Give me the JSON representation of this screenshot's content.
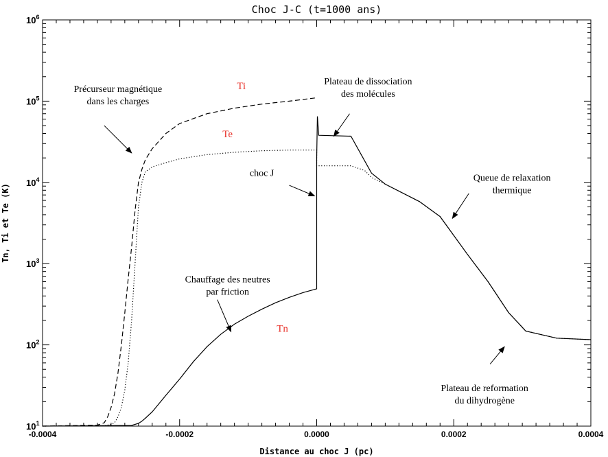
{
  "chart_data": {
    "type": "line",
    "title": "Choc J-C (t=1000 ans)",
    "xlabel": "Distance au choc J (pc)",
    "ylabel": "Tn, Ti et Te (K)",
    "xlim": [
      -0.0004,
      0.0004
    ],
    "ylim": [
      10,
      1000000
    ],
    "yscale": "log",
    "grid": false,
    "x_ticks": [
      {
        "value": -0.0004,
        "label": "-0.0004"
      },
      {
        "value": -0.0002,
        "label": "-0.0002"
      },
      {
        "value": 0.0,
        "label": "0.0000"
      },
      {
        "value": 0.0002,
        "label": "0.0002"
      },
      {
        "value": 0.0004,
        "label": "0.0004"
      }
    ],
    "y_ticks": [
      {
        "value": 10,
        "base": "10",
        "exp": "1"
      },
      {
        "value": 100,
        "base": "10",
        "exp": "2"
      },
      {
        "value": 1000,
        "base": "10",
        "exp": "3"
      },
      {
        "value": 10000,
        "base": "10",
        "exp": "4"
      },
      {
        "value": 100000,
        "base": "10",
        "exp": "5"
      },
      {
        "value": 1000000,
        "base": "10",
        "exp": "6"
      }
    ],
    "series": [
      {
        "name": "Tn",
        "style": "solid",
        "color": "#000000",
        "x": [
          -0.0004,
          -0.00027,
          -0.00026,
          -0.000255,
          -0.00025,
          -0.00024,
          -0.00022,
          -0.0002,
          -0.00018,
          -0.00016,
          -0.00014,
          -0.00012,
          -0.0001,
          -8e-05,
          -6e-05,
          -4e-05,
          -2e-05,
          0.0,
          0.0,
          1e-06,
          3e-06,
          5e-05,
          8e-05,
          0.0001,
          0.00015,
          0.00018,
          0.00022,
          0.00025,
          0.00028,
          0.000305,
          0.00035,
          0.0004
        ],
        "y": [
          10,
          10.2,
          10.8,
          11.5,
          12.5,
          15,
          24,
          38,
          62,
          95,
          135,
          180,
          225,
          275,
          330,
          385,
          440,
          490,
          20000,
          65000,
          38000,
          37000,
          13000,
          9500,
          5800,
          3800,
          1300,
          600,
          250,
          148,
          121,
          116
        ]
      },
      {
        "name": "Ti",
        "style": "dashed",
        "color": "#000000",
        "x": [
          -0.0004,
          -0.00032,
          -0.00031,
          -0.000305,
          -0.0003,
          -0.000295,
          -0.00029,
          -0.000285,
          -0.00028,
          -0.000275,
          -0.00027,
          -0.000265,
          -0.00026,
          -0.000255,
          -0.00025,
          -0.00024,
          -0.00022,
          -0.0002,
          -0.00016,
          -0.00012,
          -8e-05,
          -4e-05,
          0.0
        ],
        "y": [
          10,
          10.3,
          11,
          13,
          17,
          25,
          45,
          100,
          250,
          650,
          1600,
          4500,
          10000,
          14500,
          19000,
          26000,
          40000,
          53000,
          70000,
          82000,
          92000,
          100000,
          110000
        ]
      },
      {
        "name": "Te",
        "style": "dotted",
        "color": "#000000",
        "x": [
          -0.0004,
          -0.00031,
          -0.0003,
          -0.000295,
          -0.00029,
          -0.000285,
          -0.00028,
          -0.000275,
          -0.00027,
          -0.000265,
          -0.00026,
          -0.000255,
          -0.00025,
          -0.00024,
          -0.00022,
          -0.0002,
          -0.00016,
          -0.00012,
          -8e-05,
          -4e-05,
          0.0,
          0.0,
          5e-05,
          7e-05,
          8e-05,
          0.0001,
          0.00015,
          0.00018,
          0.00022,
          0.00025,
          0.00028,
          0.000305,
          0.00035,
          0.0004
        ],
        "y": [
          10,
          10.1,
          10.5,
          11,
          13,
          17,
          28,
          60,
          200,
          1000,
          5000,
          10000,
          13500,
          15500,
          17500,
          19500,
          22000,
          23500,
          24500,
          25000,
          25000,
          16000,
          16000,
          14000,
          11500,
          9500,
          5800,
          3800,
          1300,
          600,
          250,
          148,
          121,
          116
        ]
      }
    ],
    "series_labels": [
      {
        "text": "Ti",
        "x": -0.00011,
        "y": 140000
      },
      {
        "text": "Te",
        "x": -0.00013,
        "y": 36000
      },
      {
        "text": "Tn",
        "x": -5e-05,
        "y": 145
      }
    ],
    "annotations": [
      {
        "lines": [
          "Précurseur magnétique",
          "dans les charges"
        ],
        "x": -0.00029,
        "y": 130000,
        "arrow_from": [
          -0.00031,
          50000
        ],
        "arrow_to": [
          -0.00027,
          23000
        ]
      },
      {
        "lines": [
          "Plateau de dissociation",
          "des molécules"
        ],
        "x": 7.5e-05,
        "y": 160000,
        "arrow_from": [
          4.8e-05,
          70000
        ],
        "arrow_to": [
          2.5e-05,
          37000
        ]
      },
      {
        "lines": [
          "choc J"
        ],
        "x": -8e-05,
        "y": 12000,
        "arrow_from": [
          -4e-05,
          9200
        ],
        "arrow_to": [
          -3e-06,
          6800
        ]
      },
      {
        "lines": [
          "Queue de relaxation",
          "thermique"
        ],
        "x": 0.000285,
        "y": 10500,
        "arrow_from": [
          0.000222,
          7300
        ],
        "arrow_to": [
          0.000198,
          3600
        ]
      },
      {
        "lines": [
          "Chauffage des neutres",
          "par friction"
        ],
        "x": -0.00013,
        "y": 590,
        "arrow_from": [
          -0.000145,
          360
        ],
        "arrow_to": [
          -0.000125,
          145
        ]
      },
      {
        "lines": [
          "Plateau de reformation",
          "du dihydrogène"
        ],
        "x": 0.000245,
        "y": 27,
        "arrow_from": [
          0.000253,
          58
        ],
        "arrow_to": [
          0.000274,
          95
        ]
      }
    ]
  }
}
